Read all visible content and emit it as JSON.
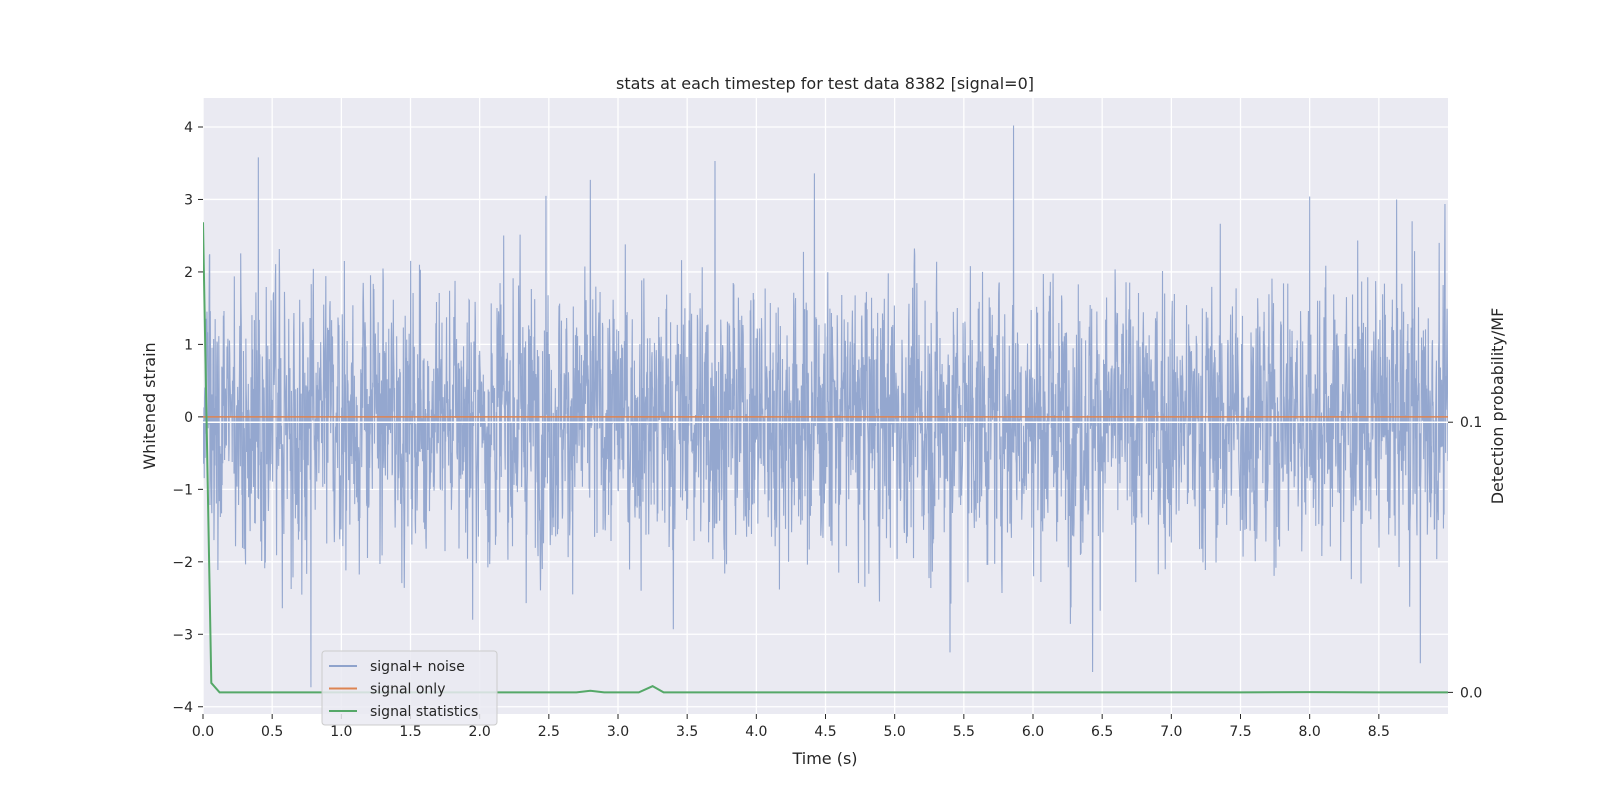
{
  "chart_data": {
    "type": "line",
    "title": "stats at each timestep for test data 8382 [signal=0]",
    "xlabel": "Time (s)",
    "ylabel": "Whitened strain",
    "y2label": "Detection probability/MF",
    "xlim": [
      0.0,
      9.0
    ],
    "ylim": [
      -4.1,
      4.4
    ],
    "y2lim": [
      -0.008,
      0.22
    ],
    "x_ticks": [
      0.0,
      0.5,
      1.0,
      1.5,
      2.0,
      2.5,
      3.0,
      3.5,
      4.0,
      4.5,
      5.0,
      5.5,
      6.0,
      6.5,
      7.0,
      7.5,
      8.0,
      8.5
    ],
    "x_tick_labels": [
      "0.0",
      "0.5",
      "1.0",
      "1.5",
      "2.0",
      "2.5",
      "3.0",
      "3.5",
      "4.0",
      "4.5",
      "5.0",
      "5.5",
      "6.0",
      "6.5",
      "7.0",
      "7.5",
      "8.0",
      "8.5"
    ],
    "y_ticks": [
      -4,
      -3,
      -2,
      -1,
      0,
      1,
      2,
      3,
      4
    ],
    "y_tick_labels": [
      "−4",
      "−3",
      "−2",
      "−1",
      "0",
      "1",
      "2",
      "3",
      "4"
    ],
    "y2_ticks": [
      0.0,
      0.1
    ],
    "y2_tick_labels": [
      "0.0",
      "0.1"
    ],
    "y2_hline": 0.1,
    "grid": true,
    "legend_position": "lower-left",
    "series": [
      {
        "name": "signal+ noise",
        "axis": "left",
        "color": "#8fa3cc",
        "kind": "noise",
        "sample_count": 4096,
        "duration": 9.0,
        "approx_std": 0.95,
        "peaks": [
          {
            "x": 0.4,
            "y": 3.58
          },
          {
            "x": 2.48,
            "y": 3.05
          },
          {
            "x": 2.8,
            "y": 3.27
          },
          {
            "x": 3.7,
            "y": 3.53
          },
          {
            "x": 4.42,
            "y": 3.36
          },
          {
            "x": 5.86,
            "y": 4.02
          },
          {
            "x": 8.0,
            "y": 3.04
          },
          {
            "x": 8.74,
            "y": 2.7
          },
          {
            "x": 0.78,
            "y": -3.73
          },
          {
            "x": 5.4,
            "y": -3.25
          },
          {
            "x": 6.43,
            "y": -3.52
          },
          {
            "x": 8.8,
            "y": -3.4
          },
          {
            "x": 3.4,
            "y": -2.93
          },
          {
            "x": 1.95,
            "y": -2.8
          }
        ]
      },
      {
        "name": "signal only",
        "axis": "left",
        "color": "#dd8452",
        "kind": "constant",
        "value": 0.0
      },
      {
        "name": "signal statistics",
        "axis": "right",
        "color": "#55a868",
        "kind": "line",
        "x": [
          0.0,
          0.06,
          0.12,
          0.5,
          1.0,
          1.5,
          2.0,
          2.5,
          2.7,
          2.8,
          2.9,
          3.0,
          3.15,
          3.25,
          3.33,
          3.42,
          3.6,
          4.0,
          5.0,
          6.0,
          7.0,
          7.5,
          8.0,
          8.5,
          9.0
        ],
        "y": [
          0.174,
          0.0035,
          0.0,
          0.0,
          0.0,
          0.0,
          0.0,
          0.0,
          0.0,
          0.0006,
          0.0,
          0.0,
          0.0,
          0.0023,
          0.0,
          0.0,
          0.0,
          0.0,
          0.0,
          0.0,
          0.0,
          0.0,
          0.0001,
          0.0,
          0.0
        ]
      }
    ]
  }
}
